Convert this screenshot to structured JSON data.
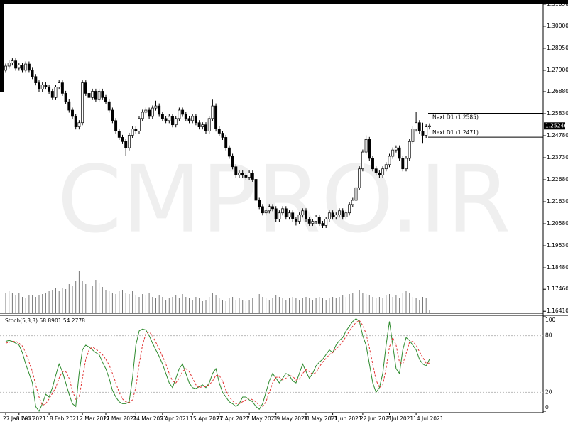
{
  "chart_data": [
    {
      "type": "candlestick",
      "watermark": "CMPRO.IR",
      "categories": [
        "27 Jan 2021",
        null,
        null,
        null,
        "8 Feb 2021",
        null,
        null,
        null,
        null,
        null,
        null,
        null,
        null,
        "18 Feb 2021",
        null,
        null,
        null,
        null,
        null,
        null,
        null,
        null,
        null,
        "2 Mar 2021",
        null,
        null,
        null,
        null,
        null,
        null,
        "12 Mar 2021",
        null,
        null,
        null,
        null,
        null,
        null,
        null,
        null,
        "24 Mar 2021",
        null,
        null,
        null,
        null,
        null,
        null,
        null,
        "5 Apr 2021",
        null,
        null,
        null,
        null,
        null,
        null,
        null,
        null,
        "15 Apr 2021",
        null,
        null,
        null,
        null,
        null,
        null,
        null,
        "27 Apr 2021",
        null,
        null,
        null,
        null,
        null,
        null,
        null,
        null,
        "7 May 2021",
        null,
        null,
        null,
        null,
        null,
        null,
        null,
        "19 May 2021",
        null,
        null,
        null,
        null,
        null,
        null,
        null,
        null,
        "31 May 2021",
        null,
        null,
        null,
        null,
        null,
        null,
        null,
        "10 Jun 2021",
        null,
        null,
        null,
        null,
        null,
        null,
        null,
        null,
        "22 Jun 2021",
        null,
        null,
        null,
        null,
        null,
        null,
        null,
        "2 Jul 2021",
        null,
        null,
        null,
        null,
        null,
        null,
        null,
        "14 Jul 2021",
        null,
        null,
        null,
        null
      ],
      "open": [
        1.279,
        1.281,
        1.2825,
        1.2835,
        1.28,
        1.2815,
        1.279,
        1.282,
        1.279,
        1.276,
        1.273,
        1.27,
        1.272,
        1.271,
        1.269,
        1.266,
        1.271,
        1.273,
        1.268,
        1.264,
        1.26,
        1.257,
        1.252,
        1.254,
        1.273,
        1.268,
        1.266,
        1.269,
        1.265,
        1.269,
        1.266,
        1.264,
        1.26,
        1.255,
        1.25,
        1.247,
        1.245,
        1.242,
        1.248,
        1.251,
        1.25,
        1.256,
        1.259,
        1.26,
        1.257,
        1.261,
        1.262,
        1.258,
        1.256,
        1.255,
        1.257,
        1.253,
        1.256,
        1.26,
        1.258,
        1.256,
        1.255,
        1.257,
        1.254,
        1.252,
        1.253,
        1.25,
        1.256,
        1.262,
        1.251,
        1.249,
        1.247,
        1.242,
        1.238,
        1.233,
        1.229,
        1.23,
        1.229,
        1.228,
        1.23,
        1.227,
        1.217,
        1.214,
        1.211,
        1.212,
        1.214,
        1.213,
        1.208,
        1.211,
        1.213,
        1.209,
        1.211,
        1.208,
        1.207,
        1.21,
        1.212,
        1.208,
        1.206,
        1.207,
        1.209,
        1.206,
        1.205,
        1.208,
        1.211,
        1.209,
        1.21,
        1.212,
        1.209,
        1.211,
        1.215,
        1.217,
        1.223,
        1.232,
        1.24,
        1.246,
        1.237,
        1.232,
        1.23,
        1.229,
        1.232,
        1.234,
        1.238,
        1.241,
        1.242,
        1.237,
        1.232,
        1.237,
        1.245,
        1.251,
        1.254,
        1.25,
        1.248,
        1.252
      ],
      "high": [
        1.2822,
        1.2837,
        1.2847,
        1.2847,
        1.2827,
        1.2827,
        1.2832,
        1.2832,
        1.2802,
        1.2772,
        1.2742,
        1.2732,
        1.2732,
        1.2722,
        1.2702,
        1.2722,
        1.2742,
        1.2742,
        1.2692,
        1.2652,
        1.2612,
        1.2582,
        1.2552,
        1.2742,
        1.2742,
        1.2692,
        1.2702,
        1.2702,
        1.2702,
        1.2702,
        1.2672,
        1.2652,
        1.2612,
        1.2562,
        1.2512,
        1.2482,
        1.2462,
        1.2492,
        1.2522,
        1.2522,
        1.2572,
        1.2602,
        1.2612,
        1.2612,
        1.2622,
        1.2645,
        1.2632,
        1.2592,
        1.2572,
        1.2582,
        1.2582,
        1.2572,
        1.2612,
        1.2612,
        1.2592,
        1.2572,
        1.2582,
        1.2582,
        1.2552,
        1.2542,
        1.2542,
        1.2572,
        1.265,
        1.2632,
        1.2522,
        1.2502,
        1.2482,
        1.2432,
        1.2392,
        1.2342,
        1.2312,
        1.2312,
        1.2302,
        1.2312,
        1.2312,
        1.2282,
        1.2182,
        1.2152,
        1.2132,
        1.2152,
        1.2152,
        1.2142,
        1.2122,
        1.2142,
        1.2142,
        1.2122,
        1.2122,
        1.2092,
        1.2112,
        1.2132,
        1.2132,
        1.2092,
        1.2082,
        1.2102,
        1.2102,
        1.2072,
        1.2092,
        1.2122,
        1.2122,
        1.2112,
        1.2132,
        1.2132,
        1.2122,
        1.2162,
        1.2182,
        1.2242,
        1.2332,
        1.2412,
        1.248,
        1.2472,
        1.2382,
        1.2332,
        1.2312,
        1.2332,
        1.2352,
        1.2392,
        1.2422,
        1.2432,
        1.2432,
        1.2382,
        1.2382,
        1.2462,
        1.2522,
        1.259,
        1.2552,
        1.254,
        1.2532,
        1.2537
      ],
      "low": [
        1.2778,
        1.2798,
        1.2813,
        1.2788,
        1.2788,
        1.2778,
        1.2778,
        1.2778,
        1.2748,
        1.2718,
        1.2688,
        1.2688,
        1.2698,
        1.2678,
        1.2648,
        1.2648,
        1.2698,
        1.2668,
        1.2628,
        1.2588,
        1.2558,
        1.2508,
        1.2508,
        1.2528,
        1.2668,
        1.2648,
        1.2648,
        1.2638,
        1.2638,
        1.2648,
        1.2628,
        1.2588,
        1.2538,
        1.2488,
        1.2458,
        1.2438,
        1.238,
        1.2408,
        1.2468,
        1.2488,
        1.2488,
        1.2548,
        1.2578,
        1.2558,
        1.2558,
        1.2598,
        1.2568,
        1.2548,
        1.2538,
        1.2538,
        1.2518,
        1.2518,
        1.2548,
        1.2568,
        1.2548,
        1.2538,
        1.2538,
        1.2528,
        1.2508,
        1.2508,
        1.2488,
        1.2488,
        1.2548,
        1.2498,
        1.2478,
        1.2458,
        1.2408,
        1.2368,
        1.2318,
        1.2278,
        1.2278,
        1.2278,
        1.2268,
        1.2268,
        1.2258,
        1.2158,
        1.2128,
        1.2098,
        1.2098,
        1.2108,
        1.2118,
        1.2068,
        1.2068,
        1.2098,
        1.2078,
        1.2078,
        1.2068,
        1.205,
        1.2058,
        1.2088,
        1.2068,
        1.2048,
        1.2048,
        1.2058,
        1.2048,
        1.2038,
        1.2038,
        1.2068,
        1.2078,
        1.2078,
        1.2088,
        1.2078,
        1.2078,
        1.2098,
        1.2138,
        1.2158,
        1.2218,
        1.2308,
        1.2388,
        1.2358,
        1.2308,
        1.2288,
        1.2278,
        1.2278,
        1.2308,
        1.2328,
        1.2368,
        1.2398,
        1.2358,
        1.2308,
        1.2308,
        1.2358,
        1.2438,
        1.2498,
        1.2488,
        1.244,
        1.2468,
        1.2508
      ],
      "close": [
        1.281,
        1.2825,
        1.2835,
        1.28,
        1.2815,
        1.279,
        1.282,
        1.279,
        1.276,
        1.273,
        1.27,
        1.272,
        1.271,
        1.269,
        1.266,
        1.271,
        1.273,
        1.268,
        1.264,
        1.26,
        1.257,
        1.252,
        1.254,
        1.273,
        1.268,
        1.266,
        1.269,
        1.265,
        1.269,
        1.266,
        1.264,
        1.26,
        1.255,
        1.25,
        1.247,
        1.245,
        1.242,
        1.248,
        1.251,
        1.25,
        1.256,
        1.259,
        1.26,
        1.257,
        1.261,
        1.262,
        1.258,
        1.256,
        1.255,
        1.257,
        1.253,
        1.256,
        1.26,
        1.258,
        1.256,
        1.255,
        1.257,
        1.254,
        1.252,
        1.253,
        1.25,
        1.256,
        1.262,
        1.251,
        1.249,
        1.247,
        1.242,
        1.238,
        1.233,
        1.229,
        1.23,
        1.229,
        1.228,
        1.23,
        1.227,
        1.217,
        1.214,
        1.211,
        1.212,
        1.214,
        1.213,
        1.208,
        1.211,
        1.213,
        1.209,
        1.211,
        1.208,
        1.207,
        1.21,
        1.212,
        1.208,
        1.206,
        1.207,
        1.209,
        1.206,
        1.205,
        1.208,
        1.211,
        1.209,
        1.21,
        1.212,
        1.209,
        1.211,
        1.215,
        1.217,
        1.223,
        1.232,
        1.24,
        1.246,
        1.237,
        1.232,
        1.23,
        1.229,
        1.232,
        1.234,
        1.238,
        1.241,
        1.242,
        1.237,
        1.232,
        1.237,
        1.245,
        1.251,
        1.254,
        1.25,
        1.248,
        1.252,
        1.2525
      ],
      "volume": [
        28,
        30,
        27,
        25,
        28,
        22,
        20,
        25,
        24,
        22,
        24,
        26,
        28,
        30,
        32,
        34,
        30,
        35,
        33,
        40,
        38,
        45,
        58,
        44,
        40,
        30,
        38,
        46,
        42,
        36,
        32,
        30,
        28,
        26,
        30,
        32,
        28,
        26,
        30,
        24,
        22,
        26,
        24,
        28,
        22,
        20,
        24,
        22,
        18,
        20,
        22,
        24,
        20,
        26,
        22,
        20,
        18,
        22,
        20,
        16,
        18,
        22,
        28,
        24,
        20,
        18,
        16,
        20,
        22,
        18,
        20,
        18,
        16,
        18,
        20,
        22,
        26,
        22,
        20,
        18,
        20,
        24,
        22,
        20,
        18,
        20,
        22,
        20,
        18,
        20,
        22,
        20,
        18,
        20,
        22,
        20,
        18,
        20,
        22,
        20,
        22,
        24,
        22,
        26,
        28,
        30,
        32,
        28,
        26,
        24,
        22,
        20,
        22,
        20,
        24,
        26,
        22,
        24,
        20,
        28,
        30,
        28,
        22,
        20,
        18,
        22,
        20,
        3
      ],
      "up_color": "#ffffff",
      "down_color": "#000000",
      "ylim": [
        1.1635,
        1.3108
      ],
      "yticks": [
        {
          "value": 1.3105,
          "label": "1.31050"
        },
        {
          "value": 1.3,
          "label": "1.30000"
        },
        {
          "value": 1.2895,
          "label": "1.28950"
        },
        {
          "value": 1.279,
          "label": "1.27900"
        },
        {
          "value": 1.2688,
          "label": "1.26880"
        },
        {
          "value": 1.2583,
          "label": "1.25830"
        },
        {
          "value": 1.2478,
          "label": "1.24780"
        },
        {
          "value": 1.2373,
          "label": "1.23730"
        },
        {
          "value": 1.2268,
          "label": "1.22680"
        },
        {
          "value": 1.2163,
          "label": "1.21630"
        },
        {
          "value": 1.2058,
          "label": "1.20580"
        },
        {
          "value": 1.1953,
          "label": "1.19530"
        },
        {
          "value": 1.1848,
          "label": "1.18480"
        },
        {
          "value": 1.1746,
          "label": "1.17460"
        },
        {
          "value": 1.1641,
          "label": "1.16410"
        }
      ],
      "current_price": {
        "value": 1.25246,
        "label": "1.25246"
      },
      "annotations": [
        {
          "label": "Next D1 (1.2585)",
          "value": 1.2585
        },
        {
          "label": "Next D1 (1.2471)",
          "value": 1.2471
        }
      ]
    },
    {
      "type": "line",
      "title": "Stoch(5,3,3) 58.8901 54.2778",
      "ylim": [
        0,
        100
      ],
      "yticks": [
        100,
        80,
        20,
        0
      ],
      "series": [
        {
          "color": "#2e8b2e",
          "values": [
            74,
            75,
            74,
            72,
            70,
            62,
            50,
            40,
            30,
            5,
            0,
            8,
            18,
            15,
            25,
            38,
            50,
            42,
            30,
            18,
            8,
            5,
            40,
            65,
            70,
            68,
            65,
            62,
            60,
            52,
            45,
            35,
            22,
            15,
            10,
            8,
            8,
            10,
            35,
            70,
            85,
            87,
            86,
            80,
            72,
            65,
            58,
            50,
            40,
            30,
            25,
            35,
            45,
            50,
            40,
            30,
            25,
            24,
            26,
            28,
            25,
            30,
            40,
            45,
            30,
            20,
            15,
            10,
            8,
            5,
            8,
            15,
            15,
            12,
            10,
            5,
            2,
            8,
            20,
            32,
            40,
            35,
            30,
            35,
            40,
            38,
            32,
            30,
            40,
            50,
            42,
            35,
            40,
            48,
            52,
            55,
            60,
            65,
            62,
            70,
            75,
            78,
            85,
            90,
            95,
            98,
            95,
            80,
            70,
            50,
            30,
            20,
            25,
            40,
            70,
            95,
            70,
            45,
            40,
            65,
            78,
            75,
            70,
            65,
            55,
            50,
            48,
            55
          ]
        },
        {
          "color": "#e03030",
          "dashed": true,
          "values": [
            72,
            73,
            74,
            74,
            72,
            69,
            62,
            52,
            42,
            28,
            15,
            6,
            8,
            13,
            19,
            25,
            35,
            42,
            42,
            35,
            22,
            12,
            15,
            35,
            55,
            65,
            68,
            66,
            63,
            60,
            55,
            49,
            40,
            30,
            20,
            13,
            10,
            9,
            12,
            25,
            50,
            70,
            82,
            84,
            80,
            73,
            66,
            58,
            50,
            40,
            32,
            30,
            35,
            42,
            45,
            42,
            35,
            28,
            25,
            26,
            26,
            28,
            32,
            38,
            38,
            32,
            22,
            15,
            11,
            8,
            8,
            10,
            12,
            14,
            12,
            10,
            6,
            5,
            10,
            20,
            30,
            36,
            36,
            33,
            35,
            38,
            37,
            33,
            34,
            40,
            44,
            42,
            39,
            41,
            47,
            52,
            56,
            60,
            62,
            66,
            69,
            74,
            79,
            85,
            90,
            94,
            96,
            91,
            82,
            67,
            50,
            33,
            25,
            28,
            45,
            68,
            78,
            70,
            52,
            50,
            61,
            73,
            74,
            70,
            63,
            57,
            51,
            51
          ]
        }
      ]
    }
  ]
}
